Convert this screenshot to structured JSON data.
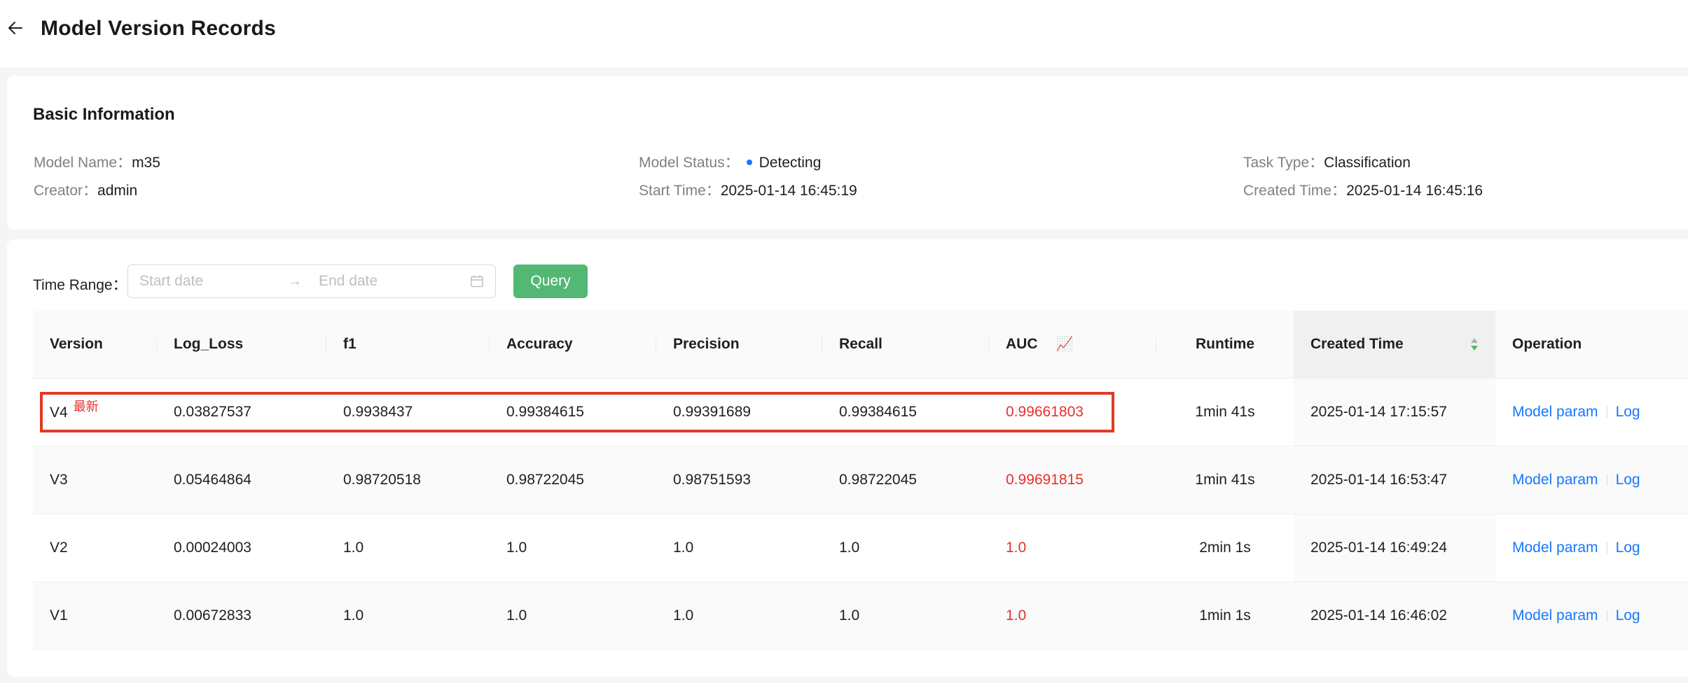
{
  "header": {
    "title": "Model Version Records"
  },
  "basic_info": {
    "title": "Basic Information",
    "model_name": {
      "label": "Model Name：",
      "value": "m35"
    },
    "creator": {
      "label": "Creator：",
      "value": "admin"
    },
    "model_status": {
      "label": "Model Status：",
      "value": "Detecting"
    },
    "start_time": {
      "label": "Start Time：",
      "value": "2025-01-14 16:45:19"
    },
    "task_type": {
      "label": "Task Type：",
      "value": "Classification"
    },
    "created_time": {
      "label": "Created Time：",
      "value": "2025-01-14 16:45:16"
    }
  },
  "filter": {
    "label": "Time Range：",
    "start_placeholder": "Start date",
    "end_placeholder": "End date",
    "separator": "→",
    "query_label": "Query"
  },
  "table": {
    "columns": {
      "version": "Version",
      "log_loss": "Log_Loss",
      "f1": "f1",
      "accuracy": "Accuracy",
      "precision": "Precision",
      "recall": "Recall",
      "auc": "AUC",
      "runtime": "Runtime",
      "created_time": "Created Time",
      "operation": "Operation"
    },
    "latest_tag": "最新",
    "op_model_param": "Model param",
    "op_log": "Log",
    "rows": [
      {
        "version": "V4",
        "log_loss": "0.03827537",
        "f1": "0.9938437",
        "accuracy": "0.99384615",
        "precision": "0.99391689",
        "recall": "0.99384615",
        "auc": "0.99661803",
        "runtime": "1min 41s",
        "created_time": "2025-01-14 17:15:57"
      },
      {
        "version": "V3",
        "log_loss": "0.05464864",
        "f1": "0.98720518",
        "accuracy": "0.98722045",
        "precision": "0.98751593",
        "recall": "0.98722045",
        "auc": "0.99691815",
        "runtime": "1min 41s",
        "created_time": "2025-01-14 16:53:47"
      },
      {
        "version": "V2",
        "log_loss": "0.00024003",
        "f1": "1.0",
        "accuracy": "1.0",
        "precision": "1.0",
        "recall": "1.0",
        "auc": "1.0",
        "runtime": "2min 1s",
        "created_time": "2025-01-14 16:49:24"
      },
      {
        "version": "V1",
        "log_loss": "0.00672833",
        "f1": "1.0",
        "accuracy": "1.0",
        "precision": "1.0",
        "recall": "1.0",
        "auc": "1.0",
        "runtime": "1min 1s",
        "created_time": "2025-01-14 16:46:02"
      }
    ]
  },
  "colors": {
    "accent": "#1677ff",
    "query_button": "#52b874",
    "auc_value": "#e5312d",
    "highlight_box": "#e03a25"
  },
  "icons": {
    "back": "arrow-left-icon",
    "calendar": "calendar-icon",
    "sort": "sort-icon",
    "chart": "chart-icon"
  }
}
